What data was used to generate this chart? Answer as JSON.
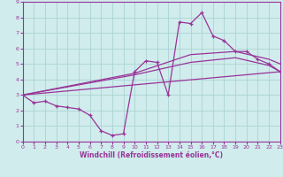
{
  "xlabel": "Windchill (Refroidissement éolien,°C)",
  "bg_color": "#d0ecec",
  "grid_color": "#aad4d4",
  "line_color": "#993399",
  "xlim": [
    0,
    23
  ],
  "ylim": [
    0,
    9
  ],
  "xticks": [
    0,
    1,
    2,
    3,
    4,
    5,
    6,
    7,
    8,
    9,
    10,
    11,
    12,
    13,
    14,
    15,
    16,
    17,
    18,
    19,
    20,
    21,
    22,
    23
  ],
  "yticks": [
    0,
    1,
    2,
    3,
    4,
    5,
    6,
    7,
    8,
    9
  ],
  "series1_x": [
    0,
    1,
    2,
    3,
    4,
    5,
    6,
    7,
    8,
    9,
    10,
    11,
    12,
    13,
    14,
    15,
    16,
    17,
    18,
    19,
    20,
    21,
    22,
    23
  ],
  "series1_y": [
    3.0,
    2.5,
    2.6,
    2.3,
    2.2,
    2.1,
    1.7,
    0.7,
    0.4,
    0.5,
    4.5,
    5.2,
    5.1,
    3.0,
    7.7,
    7.6,
    8.3,
    6.8,
    6.5,
    5.8,
    5.8,
    5.3,
    5.0,
    4.5
  ],
  "series2_x": [
    0,
    23
  ],
  "series2_y": [
    3.0,
    4.5
  ],
  "series3_x": [
    0,
    10,
    15,
    19,
    22,
    23
  ],
  "series3_y": [
    3.0,
    4.4,
    5.6,
    5.8,
    5.3,
    5.0
  ],
  "series4_x": [
    0,
    10,
    15,
    19,
    22,
    23
  ],
  "series4_y": [
    3.0,
    4.3,
    5.1,
    5.4,
    4.9,
    4.5
  ]
}
